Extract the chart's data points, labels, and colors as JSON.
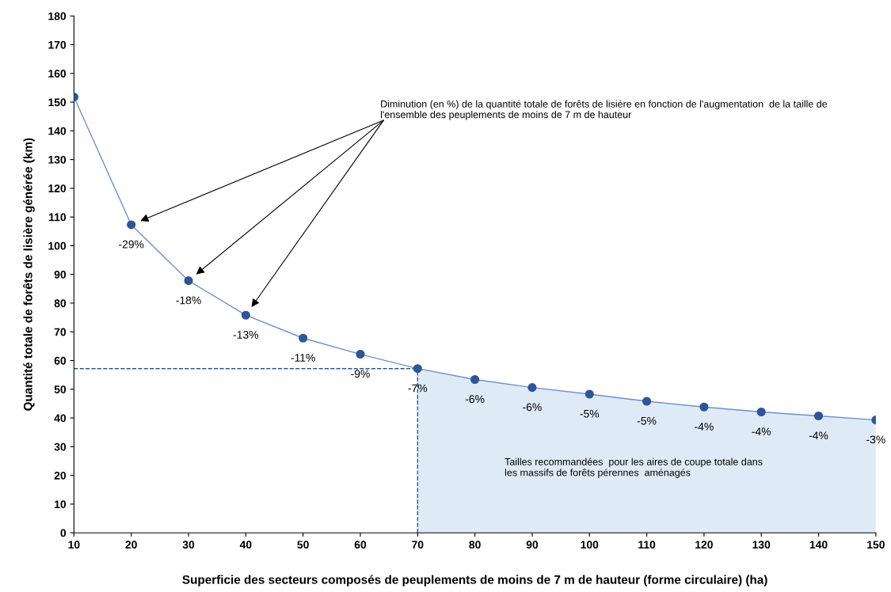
{
  "chart_data": {
    "type": "line",
    "xlabel": "Superficie des secteurs composés de peuplements de moins de 7 m de hauteur (forme circulaire) (ha)",
    "ylabel": "Quantité totale de forêts de lisière générée (km)",
    "x": [
      10,
      20,
      30,
      40,
      50,
      60,
      70,
      80,
      90,
      100,
      110,
      120,
      130,
      140,
      150
    ],
    "series": [
      {
        "type": "area",
        "color": "#deebf7",
        "x": [
          70,
          80,
          90,
          100,
          110,
          120,
          130,
          140,
          150
        ],
        "values": [
          57.2,
          53.4,
          50.6,
          48.3,
          45.8,
          43.8,
          42.1,
          40.7,
          39.3
        ]
      },
      {
        "color": "#2f5597",
        "marker": "circle",
        "values": [
          151.8,
          107.3,
          87.8,
          75.8,
          67.8,
          62.2,
          57.2,
          53.4,
          50.6,
          48.3,
          45.8,
          43.8,
          42.1,
          40.7,
          39.3
        ]
      }
    ],
    "line_style": "solid",
    "grid": false,
    "legend": false,
    "xlim": [
      10,
      150
    ],
    "xticks": [
      10,
      20,
      30,
      40,
      50,
      60,
      70,
      80,
      90,
      100,
      110,
      120,
      130,
      140,
      150
    ],
    "ylim": [
      0,
      180
    ],
    "yticks": [
      0,
      10,
      20,
      30,
      40,
      50,
      60,
      70,
      80,
      90,
      100,
      110,
      120,
      130,
      140,
      150,
      160,
      170,
      180
    ],
    "ref_lines": [
      {
        "axis": "y",
        "value": 57.2,
        "line_style": "dashed",
        "color": "#2f5597"
      },
      {
        "axis": "x",
        "value": 70,
        "line_style": "dashed",
        "color": "#2f5597"
      }
    ],
    "annotations": [
      "Diminution (en %) de la quantité totale de forêts de lisière en fonction de l'augmentation  de la taille de\nl'ensemble des peuplements de moins de 7 m de hauteur",
      "Tailles recommandées  pour les aires de coupe totale dans\nles massifs de forêts pérennes  aménagés",
      {
        "text": "-29%",
        "x": 20,
        "y": 107.3
      },
      {
        "text": "-18%",
        "x": 30,
        "y": 87.8
      },
      {
        "text": "-13%",
        "x": 40,
        "y": 75.8
      },
      {
        "text": "-11%",
        "x": 50,
        "y": 67.8
      },
      {
        "text": "-9%",
        "x": 60,
        "y": 62.2
      },
      {
        "text": "-7%",
        "x": 70,
        "y": 57.2
      },
      {
        "text": "-6%",
        "x": 80,
        "y": 53.4
      },
      {
        "text": "-6%",
        "x": 90,
        "y": 50.6
      },
      {
        "text": "-5%",
        "x": 100,
        "y": 48.3
      },
      {
        "text": "-5%",
        "x": 110,
        "y": 45.8
      },
      {
        "text": "-4%",
        "x": 120,
        "y": 43.8
      },
      {
        "text": "-4%",
        "x": 130,
        "y": 42.1
      },
      {
        "text": "-4%",
        "x": 140,
        "y": 40.7
      },
      {
        "text": "-3%",
        "x": 150,
        "y": 39.3
      }
    ]
  }
}
